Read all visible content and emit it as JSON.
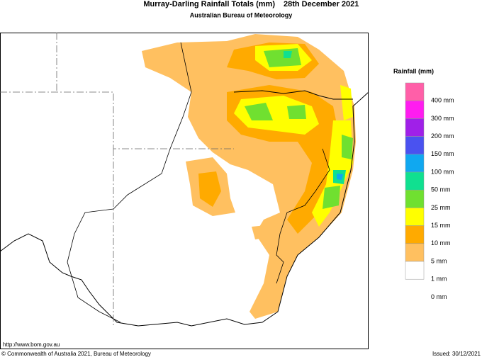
{
  "header": {
    "title": "Murray-Darling Rainfall Totals (mm)",
    "date": "28th December 2021",
    "subtitle": "Australian Bureau of Meteorology"
  },
  "legend": {
    "title": "Rainfall (mm)",
    "items": [
      {
        "label": "400 mm",
        "color": "#ff5fa8"
      },
      {
        "label": "300 mm",
        "color": "#ff1cf0"
      },
      {
        "label": "200 mm",
        "color": "#a020e8"
      },
      {
        "label": "150 mm",
        "color": "#4a52f0"
      },
      {
        "label": "100 mm",
        "color": "#10a8f0"
      },
      {
        "label": "50 mm",
        "color": "#10e090"
      },
      {
        "label": "25 mm",
        "color": "#70e030"
      },
      {
        "label": "15 mm",
        "color": "#ffff00"
      },
      {
        "label": "10 mm",
        "color": "#ffaa00"
      },
      {
        "label": "5 mm",
        "color": "#ffc060"
      },
      {
        "label": "1 mm",
        "color": "#ffffff"
      },
      {
        "label": "0 mm",
        "color": "#ffffff"
      }
    ]
  },
  "footer": {
    "url": "http://www.bom.gov.au",
    "copyright": "© Commonwealth of Australia 2021, Bureau of Meteorology",
    "issued": "Issued: 30/12/2021"
  }
}
